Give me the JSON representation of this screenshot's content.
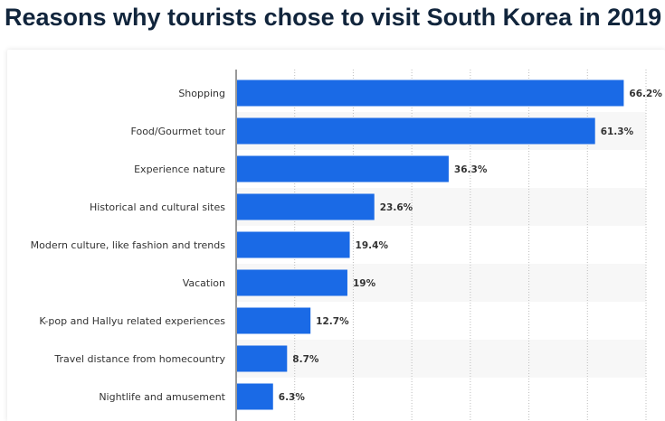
{
  "title": "Reasons why tourists chose to visit South Korea in 2019",
  "colors": {
    "bar": "#1a6ae6",
    "title": "#11253c",
    "stripe": "#f7f7f7",
    "grid": "#bdbdbd",
    "axis": "#333333"
  },
  "chart_data": {
    "type": "bar",
    "orientation": "horizontal",
    "title": "Reasons why tourists chose to visit South Korea in 2019",
    "xlabel": "",
    "ylabel": "",
    "xlim": [
      0,
      70
    ],
    "grid": true,
    "categories": [
      "Shopping",
      "Food/Gourmet tour",
      "Experience nature",
      "Historical and cultural sites",
      "Modern culture, like fashion and trends",
      "Vacation",
      "K-pop and Hallyu related experiences",
      "Travel distance from homecountry",
      "Nightlife and amusement"
    ],
    "values": [
      66.2,
      61.3,
      36.3,
      23.6,
      19.4,
      19,
      12.7,
      8.7,
      6.3
    ],
    "value_labels": [
      "66.2%",
      "61.3%",
      "36.3%",
      "23.6%",
      "19.4%",
      "19%",
      "12.7%",
      "8.7%",
      "6.3%"
    ]
  }
}
